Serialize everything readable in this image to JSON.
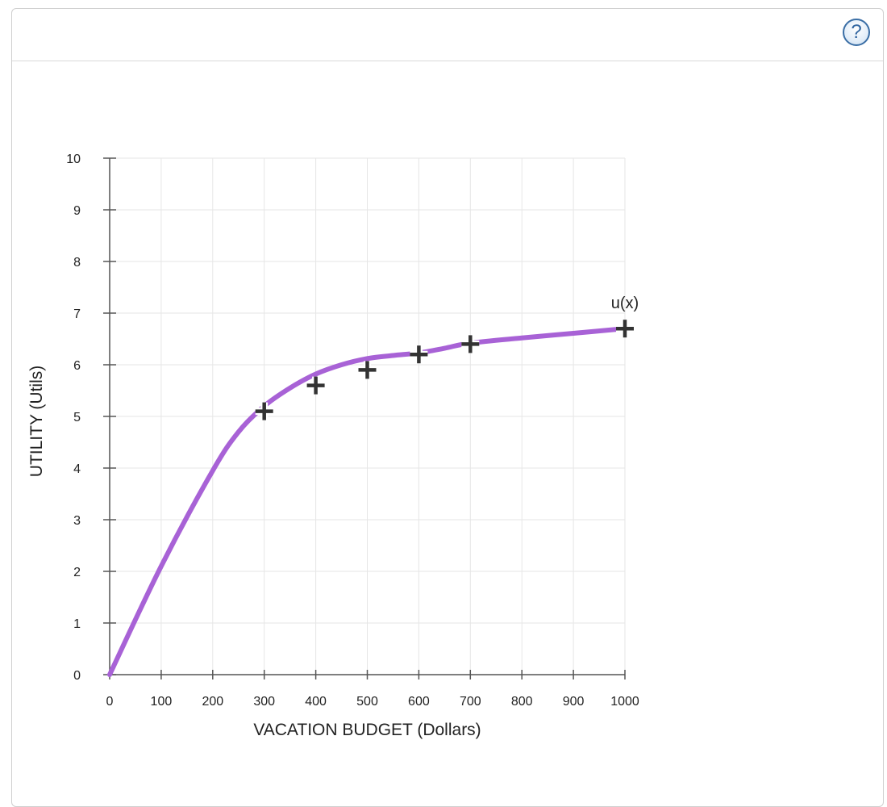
{
  "help": {
    "glyph": "?"
  },
  "chart_data": {
    "type": "line",
    "xlabel": "VACATION BUDGET (Dollars)",
    "ylabel": "UTILITY (Utils)",
    "xlim": [
      0,
      1000
    ],
    "ylim": [
      0,
      10
    ],
    "x_ticks": [
      0,
      100,
      200,
      300,
      400,
      500,
      600,
      700,
      800,
      900,
      1000
    ],
    "y_ticks": [
      0,
      1,
      2,
      3,
      4,
      5,
      6,
      7,
      8,
      9,
      10
    ],
    "grid": true,
    "series": [
      {
        "name": "u(x)",
        "color": "#a862d6",
        "x": [
          0,
          100,
          200,
          250,
          300,
          350,
          400,
          450,
          500,
          550,
          600,
          650,
          700,
          800,
          900,
          1000
        ],
        "values": [
          0,
          2.1,
          3.95,
          4.7,
          5.2,
          5.55,
          5.82,
          6.0,
          6.12,
          6.18,
          6.23,
          6.32,
          6.42,
          6.52,
          6.61,
          6.7
        ]
      }
    ],
    "markers": {
      "symbol": "plus",
      "color": "#333333",
      "points": [
        {
          "x": 300,
          "y": 5.1
        },
        {
          "x": 400,
          "y": 5.6
        },
        {
          "x": 500,
          "y": 5.9
        },
        {
          "x": 600,
          "y": 6.2
        },
        {
          "x": 700,
          "y": 6.4
        },
        {
          "x": 1000,
          "y": 6.7
        }
      ]
    }
  }
}
